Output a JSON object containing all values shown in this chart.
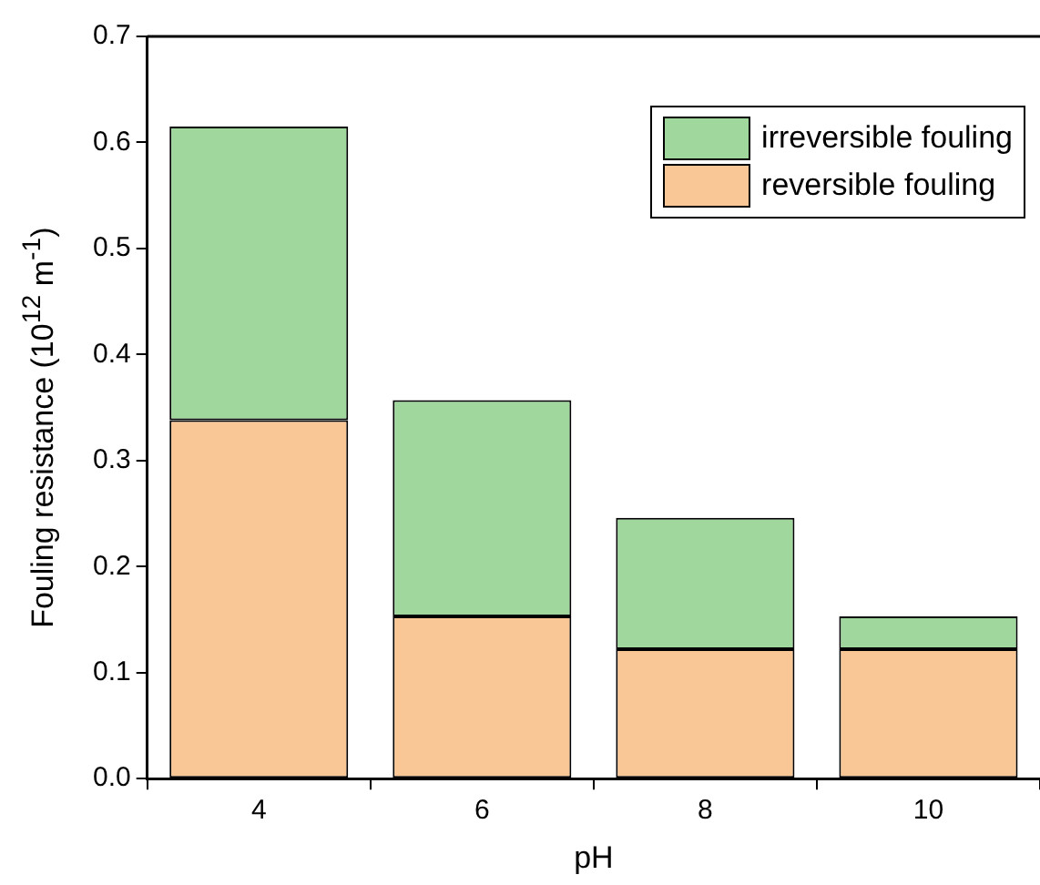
{
  "chart_data": {
    "type": "bar",
    "xlabel": "pH",
    "ylabel": "Fouling resistance (10$^{12}$ m$^{-1}$)",
    "categories": [
      "4",
      "6",
      "8",
      "10"
    ],
    "series": [
      {
        "name": "reversible fouling",
        "color": "#f9c795",
        "values": [
          0.338,
          0.153,
          0.122,
          0.122
        ]
      },
      {
        "name": "irreversible fouling",
        "color": "#9fd79d",
        "values": [
          0.277,
          0.204,
          0.124,
          0.031
        ]
      }
    ],
    "stacked": true,
    "ylim": [
      0,
      0.7
    ],
    "yticks": [
      {
        "value": 0,
        "label": "0.0"
      },
      0.1,
      0.2,
      0.3,
      0.4,
      0.5,
      0.6,
      0.7
    ],
    "grid": false,
    "legend": "top right"
  }
}
